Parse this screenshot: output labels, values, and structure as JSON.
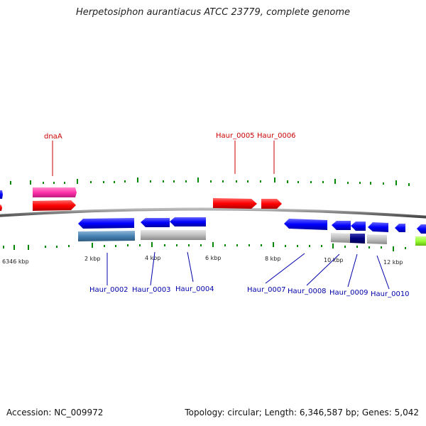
{
  "title": "Herpetosiphon aurantiacus ATCC 23779, complete genome",
  "footer": {
    "accession": "Accession: NC_009972",
    "summary": "Topology: circular; Length: 6,346,587 bp; Genes: 5,042"
  },
  "scale_labels": [
    "6346 kbp",
    "2 kbp",
    "4 kbp",
    "6 kbp",
    "8 kbp",
    "10 kbp",
    "12 kbp"
  ],
  "forward_gene_labels": [
    "dnaA",
    "Haur_0005",
    "Haur_0006"
  ],
  "reverse_gene_labels": [
    "Haur_0002",
    "Haur_0003",
    "Haur_0004",
    "Haur_0007",
    "Haur_0008",
    "Haur_0009",
    "Haur_0010"
  ],
  "colors": {
    "forward_cds": "#ff0000",
    "forward_gene": "#ff33aa",
    "reverse_cds": "#0000ff",
    "reverse_gene_steel": "#4682b4",
    "reverse_gene_grey": "#c0c0c0",
    "reverse_gene_navy": "#000080",
    "lime_feature": "#99ff33",
    "tick": "#008800",
    "backbone": "#888888",
    "fwd_label": "#cc0000",
    "rev_label": "#0000aa"
  }
}
